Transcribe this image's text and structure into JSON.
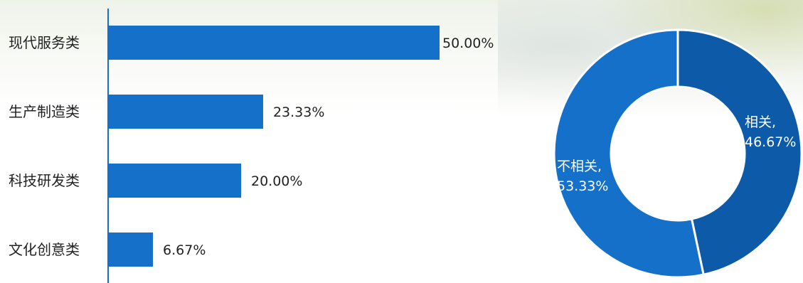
{
  "chart_data": [
    {
      "type": "bar",
      "orientation": "horizontal",
      "categories": [
        "现代服务类",
        "生产制造类",
        "科技研发类",
        "文化创意类"
      ],
      "values": [
        50.0,
        23.33,
        20.0,
        6.67
      ],
      "value_labels": [
        "50.00%",
        "23.33%",
        "20.00%",
        "6.67%"
      ],
      "unit": "%",
      "xlim": [
        0,
        50
      ],
      "grid": false,
      "legend": "none",
      "color": "#1470C8"
    },
    {
      "type": "pie",
      "style": "donut",
      "slices": [
        {
          "label": "相关,",
          "value": 46.67,
          "value_label": "46.67%",
          "color": "#0D5BA8"
        },
        {
          "label": "不相关,",
          "value": 53.33,
          "value_label": "53.33%",
          "color": "#1470C8"
        }
      ],
      "legend": "none"
    }
  ]
}
